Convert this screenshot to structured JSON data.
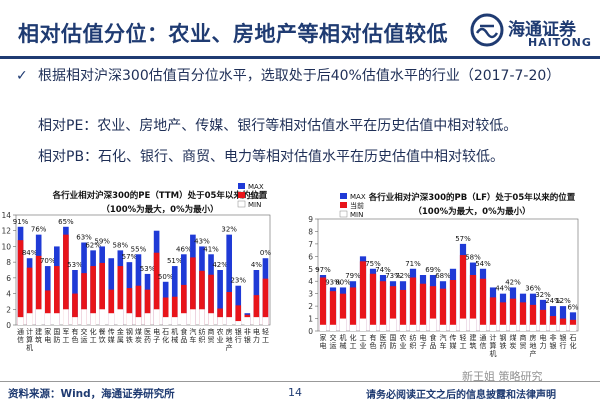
{
  "header": {
    "title": "相对估值分位：农业、房地产等相对估值较低",
    "logo_cn": "海通证券",
    "logo_en": "HAITONG"
  },
  "body": {
    "bullet": "根据相对沪深300估值百分位水平，选取处于后40%估值水平的行业（2017-7-20）",
    "pe_line": "相对PE：农业、房地产、传媒、银行等相对估值水平在历史估值中相对较低。",
    "pb_line": "相对PB：石化、银行、商贸、电力等相对估值水平在历史估值中相对较低。"
  },
  "footer": {
    "source": "资料来源：Wind，海通证券研究所",
    "page": "14",
    "disclaimer": "请务必阅读正文之后的信息披露和法律声明",
    "watermark": "新王姐 策略研究"
  },
  "colors": {
    "max": "#1f3ad6",
    "current": "#e8141a",
    "min": "#ffffff",
    "title": "#1f3b72"
  },
  "chart_data": [
    {
      "type": "bar",
      "title": "各行业相对沪深300的PE（TTM）处于05年以来的位置",
      "subtitle": "（100%为最大，0%为最小）",
      "legend": [
        "MAX",
        "当前",
        "MIN"
      ],
      "legend_position": "top-right",
      "ylim": [
        0,
        14
      ],
      "yticks": [
        0,
        2,
        4,
        6,
        8,
        10,
        12,
        14
      ],
      "categories": [
        "通信",
        "计算机",
        "建筑",
        "家电",
        "国防",
        "军工",
        "有色",
        "交运",
        "化工",
        "餐饮",
        "传媒",
        "金属",
        "钢铁",
        "煤炭",
        "医药",
        "电子",
        "石化",
        "机械",
        "食品",
        "汽车",
        "纺织",
        "商贸",
        "农业",
        "房地产",
        "银行",
        "非银",
        "电力",
        "轻工"
      ],
      "series": [
        {
          "name": "MAX",
          "values": [
            12.5,
            8.5,
            11.5,
            7.5,
            10,
            12.5,
            7,
            10.5,
            9.5,
            10,
            8.5,
            9.5,
            8,
            9,
            6.5,
            12,
            5.5,
            7.5,
            9,
            11.5,
            10,
            9,
            7,
            11.5,
            5,
            1.5,
            7,
            8.5
          ]
        },
        {
          "name": "当前",
          "values": [
            10.8,
            7.3,
            8.8,
            4.4,
            7.5,
            11.5,
            4,
            6.6,
            7.5,
            7.9,
            4.5,
            7.5,
            4.7,
            5,
            4.5,
            9.2,
            3.5,
            3.6,
            5.1,
            8.6,
            6.9,
            6.4,
            2.1,
            4.2,
            2.5,
            1.3,
            3.8,
            5.9
          ]
        },
        {
          "name": "MIN",
          "values": [
            1,
            1.5,
            2,
            1.5,
            1.5,
            2,
            1,
            2,
            1.5,
            2,
            1.5,
            2,
            1.5,
            1,
            1.5,
            2,
            1,
            1,
            1.5,
            2,
            2,
            1.5,
            1,
            1,
            0.5,
            1,
            1,
            1
          ]
        }
      ],
      "data_labels": [
        "91%",
        "84%",
        "76%",
        "70%",
        "",
        "65%",
        "53%",
        "63%",
        "62%",
        "59%",
        "",
        "58%",
        "57%",
        "55%",
        "53%",
        "",
        "50%",
        "51%",
        "46%",
        "",
        "43%",
        "41%",
        "42%",
        "32%",
        "23%",
        "",
        "4%",
        "0%"
      ]
    },
    {
      "type": "bar",
      "title": "各行业相对沪深300的PB（LF）处于05年以来的位置",
      "subtitle": "（100%为最大，0%为最小）",
      "legend": [
        "MAX",
        "当前",
        "MIN"
      ],
      "legend_position": "top-right",
      "ylim": [
        0,
        9
      ],
      "yticks": [
        0,
        1,
        2,
        3,
        4,
        5,
        6,
        7,
        8,
        9
      ],
      "categories": [
        "家电",
        "交运",
        "机械",
        "化工",
        "工业",
        "有色",
        "医药",
        "国防",
        "农业",
        "纺织",
        "电子",
        "食品",
        "汽车",
        "传媒",
        "轻工",
        "建筑",
        "通信",
        "计算机",
        "钢铁",
        "煤炭",
        "商贸",
        "房地产",
        "电力",
        "非银",
        "银行",
        "石化"
      ],
      "series": [
        {
          "name": "MAX",
          "values": [
            4.5,
            3.5,
            3.5,
            4,
            6,
            5,
            4.5,
            4,
            4,
            5,
            4.5,
            4.5,
            4,
            5,
            7,
            5.5,
            5,
            3.5,
            3,
            3.5,
            3,
            3,
            2.5,
            2,
            2,
            1.5
          ]
        },
        {
          "name": "当前",
          "values": [
            4.3,
            3.2,
            3,
            3.5,
            5.6,
            4.6,
            4,
            3.6,
            3.3,
            4.3,
            3.8,
            3.6,
            3.4,
            4.1,
            6.1,
            4.5,
            4.2,
            2.7,
            2.3,
            2.6,
            2.3,
            2.1,
            1.7,
            1.2,
            1,
            0.9
          ]
        },
        {
          "name": "MIN",
          "values": [
            0.5,
            0.5,
            1,
            0.5,
            1,
            0.5,
            0.5,
            1,
            0.5,
            0.5,
            0.5,
            1,
            0.5,
            0.5,
            1,
            1,
            0.5,
            0.5,
            0.5,
            0.5,
            0.5,
            0.5,
            0.5,
            0.5,
            0.5,
            0.5
          ]
        }
      ],
      "data_labels": [
        "97%",
        "93%",
        "80%",
        "79%",
        "",
        "75%",
        "74%",
        "73%",
        "72%",
        "71%",
        "",
        "69%",
        "68%",
        "",
        "57%",
        "58%",
        "54%",
        "",
        "44%",
        "42%",
        "",
        "36%",
        "32%",
        "24%",
        "12%",
        "6%"
      ]
    }
  ]
}
